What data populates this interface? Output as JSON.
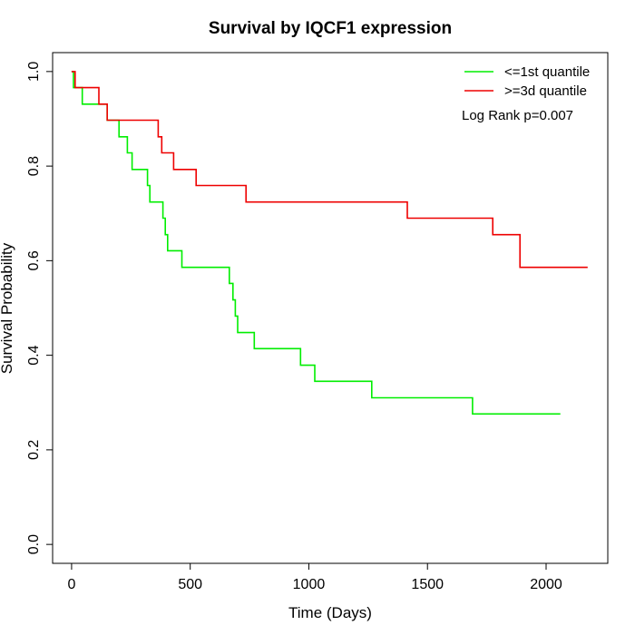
{
  "chart_data": {
    "type": "line",
    "subtype": "kaplan-meier",
    "title": "Survival by IQCF1 expression",
    "xlabel": "Time (Days)",
    "ylabel": "Survival Probability",
    "xlim": [
      -80,
      2260
    ],
    "ylim": [
      -0.04,
      1.04
    ],
    "xticks": [
      0,
      500,
      1000,
      1500,
      2000
    ],
    "yticks": [
      0.0,
      0.2,
      0.4,
      0.6,
      0.8,
      1.0
    ],
    "xtick_labels": [
      "0",
      "500",
      "1000",
      "1500",
      "2000"
    ],
    "ytick_labels": [
      "0.0",
      "0.2",
      "0.4",
      "0.6",
      "0.8",
      "1.0"
    ],
    "grid": false,
    "legend_position": "top-right",
    "annotation": "Log Rank p=0.007",
    "series": [
      {
        "name": "<=1st quantile",
        "color": "#00ee00",
        "x": [
          0,
          8,
          45,
          125,
          150,
          200,
          235,
          255,
          320,
          330,
          385,
          395,
          405,
          465,
          665,
          680,
          690,
          695,
          700,
          770,
          965,
          1025,
          1265,
          1690,
          2060
        ],
        "y": [
          1.0,
          0.966,
          0.931,
          0.931,
          0.897,
          0.862,
          0.828,
          0.793,
          0.759,
          0.724,
          0.69,
          0.655,
          0.621,
          0.586,
          0.552,
          0.517,
          0.483,
          0.483,
          0.448,
          0.414,
          0.379,
          0.345,
          0.31,
          0.276,
          0.276
        ]
      },
      {
        "name": ">=3d quantile",
        "color": "#ee0000",
        "x": [
          0,
          15,
          115,
          150,
          365,
          380,
          430,
          525,
          735,
          1415,
          1775,
          1890,
          2175
        ],
        "y": [
          1.0,
          0.966,
          0.931,
          0.897,
          0.862,
          0.828,
          0.793,
          0.759,
          0.724,
          0.69,
          0.655,
          0.586,
          0.586
        ]
      }
    ]
  }
}
